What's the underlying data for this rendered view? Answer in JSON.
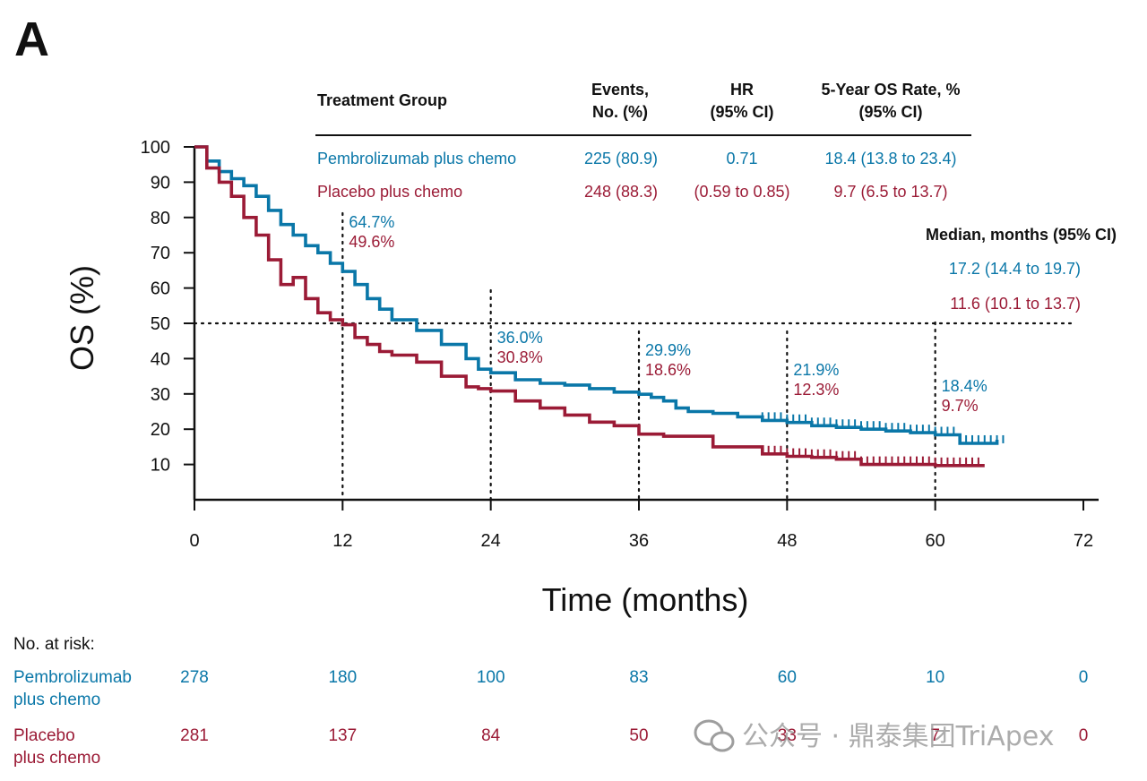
{
  "panel_label": "A",
  "colors": {
    "pembro": "#0a77a8",
    "placebo": "#9b1b36",
    "axis": "#111111"
  },
  "table": {
    "headers": [
      "Treatment Group",
      "Events,\nNo. (%)",
      "HR\n(95% CI)",
      "5-Year OS Rate, %\n(95% CI)"
    ],
    "rows": [
      {
        "group": "Pembrolizumab plus chemo",
        "events": "225 (80.9)",
        "hr": "0.71",
        "rate": "18.4 (13.8 to 23.4)"
      },
      {
        "group": "Placebo plus chemo",
        "events": "248 (88.3)",
        "hr": "(0.59 to 0.85)",
        "rate": "9.7 (6.5 to 13.7)"
      }
    ]
  },
  "median": {
    "title": "Median, months (95% CI)",
    "pembro": "17.2 (14.4 to 19.7)",
    "placebo": "11.6 (10.1 to 13.7)"
  },
  "chart_data": {
    "type": "line",
    "title": "",
    "xlabel": "Time (months)",
    "ylabel": "OS (%)",
    "xlim": [
      0,
      72
    ],
    "ylim": [
      0,
      100
    ],
    "x_ticks": [
      0,
      12,
      24,
      36,
      48,
      60,
      72
    ],
    "y_ticks": [
      10,
      20,
      30,
      40,
      50,
      60,
      70,
      80,
      90,
      100
    ],
    "series": [
      {
        "name": "Pembrolizumab plus chemo",
        "color": "#0a77a8",
        "x": [
          0,
          1,
          2,
          3,
          4,
          5,
          6,
          7,
          8,
          9,
          10,
          11,
          12,
          13,
          14,
          15,
          16,
          18,
          20,
          22,
          23,
          24,
          26,
          28,
          30,
          32,
          34,
          36,
          37,
          38,
          39,
          40,
          42,
          44,
          46,
          48,
          50,
          52,
          54,
          56,
          58,
          60,
          62,
          64,
          65
        ],
        "y": [
          100,
          96,
          93,
          91,
          89,
          86,
          82,
          78,
          75,
          72,
          70,
          67,
          64.7,
          61,
          57,
          54,
          51,
          48,
          44,
          40,
          37,
          36,
          34,
          33,
          32.5,
          31.5,
          30.5,
          29.9,
          29,
          28,
          26,
          25,
          24.5,
          23.5,
          22.5,
          21.9,
          21,
          20.5,
          20,
          19.5,
          19,
          18.4,
          16,
          16,
          17
        ]
      },
      {
        "name": "Placebo plus chemo",
        "color": "#9b1b36",
        "x": [
          0,
          1,
          2,
          3,
          4,
          5,
          6,
          7,
          8,
          9,
          10,
          11,
          12,
          13,
          14,
          15,
          16,
          18,
          20,
          22,
          23,
          24,
          26,
          28,
          30,
          32,
          34,
          36,
          38,
          40,
          42,
          44,
          46,
          48,
          50,
          52,
          54,
          56,
          58,
          60,
          62,
          64
        ],
        "y": [
          100,
          94,
          90,
          86,
          80,
          75,
          68,
          61,
          63,
          57,
          53,
          51,
          49.6,
          46,
          44,
          42,
          41,
          39,
          35,
          32,
          31.5,
          30.8,
          28,
          26,
          24,
          22,
          21,
          18.6,
          18,
          18,
          15,
          15,
          13,
          12.3,
          12,
          11.5,
          10,
          10,
          10,
          9.7,
          9.7,
          9.7
        ]
      }
    ],
    "reference_line_y": 50,
    "annotations": [
      {
        "x": 12,
        "pembro": "64.7%",
        "placebo": "49.6%"
      },
      {
        "x": 24,
        "pembro": "36.0%",
        "placebo": "30.8%"
      },
      {
        "x": 36,
        "pembro": "29.9%",
        "placebo": "18.6%"
      },
      {
        "x": 48,
        "pembro": "21.9%",
        "placebo": "12.3%"
      },
      {
        "x": 60,
        "pembro": "18.4%",
        "placebo": "9.7%"
      }
    ]
  },
  "risk_table": {
    "title": "No. at risk:",
    "times": [
      0,
      12,
      24,
      36,
      48,
      60,
      72
    ],
    "rows": [
      {
        "label": [
          "Pembrolizumab",
          "plus chemo"
        ],
        "values": [
          "278",
          "180",
          "100",
          "83",
          "60",
          "10",
          "0"
        ]
      },
      {
        "label": [
          "Placebo",
          "plus chemo"
        ],
        "values": [
          "281",
          "137",
          "84",
          "50",
          "33",
          "7",
          "0"
        ]
      }
    ]
  },
  "watermark": "公众号 · 鼎泰集团TriApex"
}
